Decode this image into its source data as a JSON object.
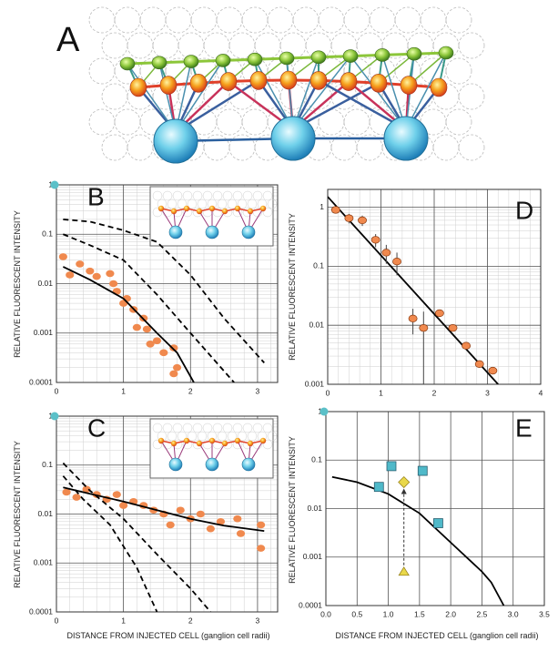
{
  "panel_a": {
    "label": "A"
  },
  "chart_data": [
    {
      "type": "line",
      "label": "B",
      "ylabel": "RELATIVE FLUORESCENT INTENSITY",
      "log_y": true,
      "minor_grid": true,
      "xlim": [
        0,
        3.3
      ],
      "ylim": [
        0.0001,
        1
      ],
      "xticks": [
        0,
        1,
        2,
        3
      ],
      "yticks": [
        0.0001,
        0.001,
        0.01,
        0.1,
        1
      ],
      "series": [
        {
          "marker": "circle",
          "color": "#f0894e",
          "x": [
            0.1,
            0.2,
            0.35,
            0.5,
            0.6,
            0.8,
            0.85,
            0.9,
            1.0,
            1.05,
            1.15,
            1.2,
            1.3,
            1.35,
            1.4,
            1.5,
            1.6,
            1.75,
            1.8,
            1.75
          ],
          "values": [
            0.035,
            0.015,
            0.025,
            0.018,
            0.014,
            0.016,
            0.01,
            0.007,
            0.004,
            0.005,
            0.003,
            0.0013,
            0.002,
            0.0012,
            0.0006,
            0.0007,
            0.0004,
            0.0005,
            0.0002,
            0.00015
          ]
        },
        {
          "line": "solid",
          "color": "#000000",
          "x": [
            0.1,
            0.5,
            1.0,
            1.5,
            1.8,
            2.05
          ],
          "values": [
            0.022,
            0.012,
            0.005,
            0.001,
            0.0004,
            0.0001
          ]
        },
        {
          "line": "dashed",
          "color": "#000000",
          "x": [
            0.1,
            0.5,
            1.0,
            1.5,
            2.0,
            2.5,
            3.1
          ],
          "values": [
            0.2,
            0.18,
            0.12,
            0.07,
            0.015,
            0.002,
            0.00025
          ]
        },
        {
          "line": "dashed",
          "color": "#000000",
          "x": [
            0.1,
            0.5,
            1.0,
            1.5,
            2.0,
            2.65
          ],
          "values": [
            0.1,
            0.06,
            0.03,
            0.006,
            0.001,
            0.0001
          ]
        }
      ]
    },
    {
      "type": "line",
      "label": "D",
      "ylabel": "RELATIVE FLUORESCENT INTENSITY",
      "log_y": true,
      "minor_grid": true,
      "xlim": [
        0,
        4
      ],
      "ylim": [
        0.001,
        2
      ],
      "xticks": [
        0,
        1,
        2,
        3,
        4
      ],
      "yticks": [
        0.001,
        0.01,
        0.1,
        1
      ],
      "series": [
        {
          "line": "solid",
          "color": "#000000",
          "x": [
            0,
            3.2
          ],
          "values": [
            1.5,
            0.001
          ]
        },
        {
          "marker": "circle",
          "color": "#f0894e",
          "x": [
            0.15,
            0.4,
            0.65,
            0.9,
            1.1,
            1.3,
            1.6,
            1.8,
            2.1,
            2.35,
            2.6,
            2.85,
            3.1
          ],
          "values": [
            0.9,
            0.65,
            0.6,
            0.28,
            0.17,
            0.12,
            0.013,
            0.009,
            0.016,
            0.009,
            0.0045,
            0.0022,
            0.0017
          ],
          "errors": [
            null,
            0.12,
            0.12,
            0.07,
            0.06,
            0.05,
            0.006,
            0.008,
            null,
            null,
            null,
            null,
            null
          ]
        }
      ]
    },
    {
      "type": "line",
      "label": "C",
      "ylabel": "RELATIVE FLUORESCENT INTENSITY",
      "xlabel": "DISTANCE FROM INJECTED CELL (ganglion cell radii)",
      "log_y": true,
      "minor_grid": true,
      "xlim": [
        0,
        3.3
      ],
      "ylim": [
        0.0001,
        1
      ],
      "xticks": [
        0,
        1,
        2,
        3
      ],
      "yticks": [
        0.0001,
        0.001,
        0.01,
        0.1,
        1
      ],
      "series": [
        {
          "marker": "circle",
          "color": "#f0894e",
          "x": [
            0.15,
            0.3,
            0.45,
            0.6,
            0.75,
            0.9,
            1.0,
            1.15,
            1.3,
            1.45,
            1.6,
            1.7,
            1.85,
            2.0,
            2.15,
            2.3,
            2.45,
            2.7,
            2.75,
            3.05,
            3.05
          ],
          "values": [
            0.028,
            0.022,
            0.032,
            0.025,
            0.02,
            0.025,
            0.015,
            0.018,
            0.015,
            0.012,
            0.01,
            0.006,
            0.012,
            0.008,
            0.01,
            0.005,
            0.007,
            0.008,
            0.004,
            0.006,
            0.002
          ]
        },
        {
          "line": "solid",
          "color": "#000000",
          "x": [
            0.1,
            0.5,
            1.0,
            1.5,
            2.0,
            2.5,
            3.1
          ],
          "values": [
            0.035,
            0.026,
            0.018,
            0.012,
            0.008,
            0.0058,
            0.0045
          ]
        },
        {
          "line": "dashed",
          "color": "#000000",
          "x": [
            0.1,
            0.5,
            1.0,
            1.5,
            2.0,
            2.3
          ],
          "values": [
            0.11,
            0.03,
            0.008,
            0.0015,
            0.0003,
            0.0001
          ]
        },
        {
          "line": "dashed",
          "color": "#000000",
          "x": [
            0.1,
            0.4,
            0.8,
            1.2,
            1.5
          ],
          "values": [
            0.06,
            0.02,
            0.006,
            0.0008,
            0.0001
          ]
        }
      ]
    },
    {
      "type": "line",
      "label": "E",
      "ylabel": "RELATIVE FLUORESCENT INTENSITY",
      "xlabel": "DISTANCE FROM INJECTED CELL (ganglion cell radii)",
      "log_y": true,
      "minor_grid": false,
      "xlim": [
        0,
        3.5
      ],
      "ylim": [
        0.0001,
        1
      ],
      "xticks": [
        {
          "value": 0,
          "label": "0.0"
        },
        0.5,
        {
          "value": 1,
          "label": "1.0"
        },
        1.5,
        {
          "value": 2,
          "label": "2.0"
        },
        2.5,
        {
          "value": 3,
          "label": "3.0"
        },
        3.5
      ],
      "yticks": [
        0.0001,
        0.001,
        0.01,
        0.1,
        1
      ],
      "series": [
        {
          "line": "solid",
          "color": "#000000",
          "x": [
            0.1,
            0.5,
            1.0,
            1.5,
            2.0,
            2.5,
            2.65,
            2.85
          ],
          "values": [
            0.045,
            0.035,
            0.02,
            0.008,
            0.002,
            0.0005,
            0.0003,
            0.0001
          ]
        },
        {
          "marker": "square",
          "color": "#4fb9c9",
          "x": [
            0.85,
            1.05,
            1.55,
            1.8
          ],
          "values": [
            0.028,
            0.075,
            0.06,
            0.005
          ]
        },
        {
          "marker": "diamond",
          "color": "#e9d84a",
          "x": [
            1.25
          ],
          "values": [
            0.035
          ]
        },
        {
          "marker": "triangle",
          "color": "#e9d84a",
          "x": [
            1.25
          ],
          "values": [
            0.0005
          ]
        }
      ]
    }
  ]
}
